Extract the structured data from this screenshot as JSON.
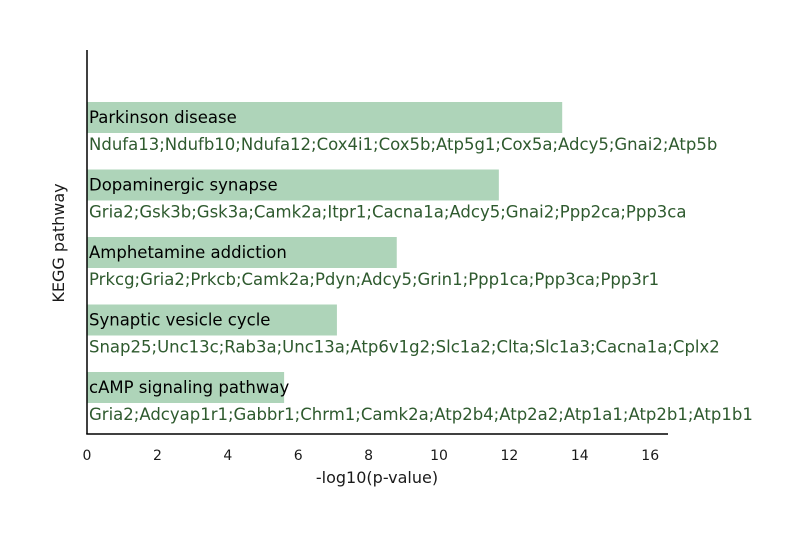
{
  "chart_data": {
    "type": "bar",
    "orientation": "horizontal",
    "xlabel": "-log10(p-value)",
    "ylabel": "KEGG pathway",
    "xlim": [
      0,
      16.5
    ],
    "xticks": [
      0,
      2,
      4,
      6,
      8,
      10,
      12,
      14,
      16
    ],
    "grid": false,
    "bar_color": "#aed4b9",
    "gene_text_color": "#2e5a2e",
    "categories": [
      "Parkinson disease",
      "Dopaminergic synapse",
      "Amphetamine addiction",
      "Synaptic vesicle cycle",
      "cAMP signaling pathway"
    ],
    "values": [
      13.5,
      11.7,
      8.8,
      7.1,
      5.6
    ],
    "annotations": [
      "Ndufa13;Ndufb10;Ndufa12;Cox4i1;Cox5b;Atp5g1;Cox5a;Adcy5;Gnai2;Atp5b",
      "Gria2;Gsk3b;Gsk3a;Camk2a;Itpr1;Cacna1a;Adcy5;Gnai2;Ppp2ca;Ppp3ca",
      "Prkcg;Gria2;Prkcb;Camk2a;Pdyn;Adcy5;Grin1;Ppp1ca;Ppp3ca;Ppp3r1",
      "Snap25;Unc13c;Rab3a;Unc13a;Atp6v1g2;Slc1a2;Clta;Slc1a3;Cacna1a;Cplx2",
      "Gria2;Adcyap1r1;Gabbr1;Chrm1;Camk2a;Atp2b4;Atp2a2;Atp1a1;Atp2b1;Atp1b1"
    ]
  }
}
